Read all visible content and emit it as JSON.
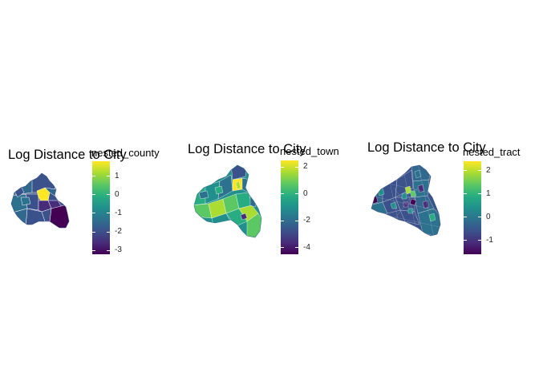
{
  "colors": {
    "viridis": [
      "#440154",
      "#472c7a",
      "#3b518b",
      "#2c718e",
      "#21908d",
      "#27ad81",
      "#5cc863",
      "#aadc32",
      "#fde725"
    ]
  },
  "panels": [
    {
      "title": "Log Distance to City",
      "legend_title": "nested_county",
      "value_range": [
        -3.2,
        1.8
      ],
      "ticks": [
        {
          "value": 1,
          "label": "1"
        },
        {
          "value": 0,
          "label": "0"
        },
        {
          "value": -1,
          "label": "-1"
        },
        {
          "value": -2,
          "label": "-2"
        },
        {
          "value": -3,
          "label": "-3"
        }
      ]
    },
    {
      "title": "Log Distance to City",
      "legend_title": "nested_town",
      "value_range": [
        -4.5,
        2.5
      ],
      "ticks": [
        {
          "value": 2,
          "label": "2"
        },
        {
          "value": 0,
          "label": "0"
        },
        {
          "value": -2,
          "label": "-2"
        },
        {
          "value": -4,
          "label": "-4"
        }
      ]
    },
    {
      "title": "Log Distance to City",
      "legend_title": "nested_tract",
      "value_range": [
        -1.6,
        2.4
      ],
      "ticks": [
        {
          "value": 2,
          "label": "2"
        },
        {
          "value": 1,
          "label": "1"
        },
        {
          "value": 0,
          "label": "0"
        },
        {
          "value": -1,
          "label": "-1"
        }
      ]
    }
  ]
}
